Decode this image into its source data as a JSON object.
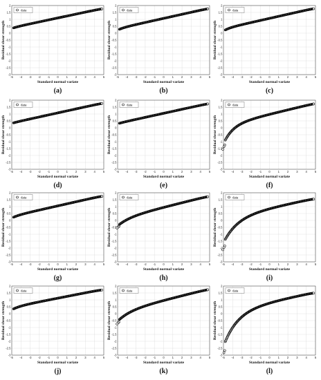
{
  "figure": {
    "xlabel": "Standard normal variate",
    "ylabel": "Residual shear strength",
    "legend_label": "data",
    "legend_position": "top-left",
    "marker": "open-circle",
    "marker_color": "#000000",
    "grid": true
  },
  "chart_data": [
    {
      "caption": "(a)",
      "type": "scatter",
      "xlim": [
        -5,
        5
      ],
      "ylim": [
        -3,
        2
      ],
      "xticks": [
        "-5",
        "-4",
        "-3",
        "-2",
        "-1",
        "0",
        "1",
        "2",
        "3",
        "4",
        "5"
      ],
      "yticks": [
        "-3",
        "-2.5",
        "-2",
        "-1.5",
        "-1",
        "-0.5",
        "0",
        "0.5",
        "1",
        "1.5",
        "2"
      ],
      "x_range": [
        -4.8,
        4.8
      ],
      "y_at_center": 1.1,
      "slope": 0.141,
      "lower_tail": {
        "depth": 0.04,
        "decay": 0.6
      },
      "upper_tail": {
        "depth": 0.02,
        "decay": 0.5
      }
    },
    {
      "caption": "(b)",
      "type": "scatter",
      "xlim": [
        -5,
        5
      ],
      "ylim": [
        -3,
        2
      ],
      "xticks": [
        "-5",
        "-4",
        "-3",
        "-2",
        "-1",
        "0",
        "1",
        "2",
        "3",
        "4",
        "5"
      ],
      "yticks": [
        "-3",
        "-2.5",
        "-2",
        "-1.5",
        "-1",
        "-0.5",
        "0",
        "0.5",
        "1",
        "1.5",
        "2"
      ],
      "x_range": [
        -4.8,
        4.8
      ],
      "y_at_center": 1.07,
      "slope": 0.148,
      "lower_tail": {
        "depth": 0.08,
        "decay": 0.6
      },
      "upper_tail": {
        "depth": 0.02,
        "decay": 0.5
      }
    },
    {
      "caption": "(c)",
      "type": "scatter",
      "xlim": [
        -5,
        5
      ],
      "ylim": [
        -3,
        2
      ],
      "xticks": [
        "-5",
        "-4",
        "-3",
        "-2",
        "-1",
        "0",
        "1",
        "2",
        "3",
        "4",
        "5"
      ],
      "yticks": [
        "-3",
        "-2.5",
        "-2",
        "-1.5",
        "-1",
        "-0.5",
        "0",
        "0.5",
        "1",
        "1.5",
        "2"
      ],
      "x_range": [
        -4.8,
        4.8
      ],
      "y_at_center": 1.07,
      "slope": 0.15,
      "lower_tail": {
        "depth": 0.12,
        "decay": 0.6
      },
      "upper_tail": {
        "depth": 0.02,
        "decay": 0.5
      }
    },
    {
      "caption": "(d)",
      "type": "scatter",
      "xlim": [
        -5,
        5
      ],
      "ylim": [
        -3,
        2
      ],
      "xticks": [
        "-5",
        "-4",
        "-3",
        "-2",
        "-1",
        "0",
        "1",
        "2",
        "3",
        "4",
        "5"
      ],
      "yticks": [
        "-3",
        "-2.5",
        "-2",
        "-1.5",
        "-1",
        "-0.5",
        "0",
        "0.5",
        "1",
        "1.5",
        "2"
      ],
      "x_range": [
        -4.8,
        4.8
      ],
      "y_at_center": 1.08,
      "slope": 0.146,
      "lower_tail": {
        "depth": 0.02,
        "decay": 0.5
      },
      "upper_tail": {
        "depth": 0.02,
        "decay": 0.5
      }
    },
    {
      "caption": "(e)",
      "type": "scatter",
      "xlim": [
        -5,
        5
      ],
      "ylim": [
        -3,
        2
      ],
      "xticks": [
        "-5",
        "-4",
        "-3",
        "-2",
        "-1",
        "0",
        "1",
        "2",
        "3",
        "4",
        "5"
      ],
      "yticks": [
        "-3",
        "-2.5",
        "-2",
        "-1.5",
        "-1",
        "-0.5",
        "0",
        "0.5",
        "1",
        "1.5",
        "2"
      ],
      "x_range": [
        -4.8,
        4.8
      ],
      "y_at_center": 1.05,
      "slope": 0.146,
      "lower_tail": {
        "depth": 0.02,
        "decay": 0.5
      },
      "upper_tail": {
        "depth": 0.02,
        "decay": 0.5
      }
    },
    {
      "caption": "(f)",
      "type": "scatter",
      "xlim": [
        -5,
        5
      ],
      "ylim": [
        -3,
        2
      ],
      "xticks": [
        "-5",
        "-4",
        "-3",
        "-2",
        "-1",
        "0",
        "1",
        "2",
        "3",
        "4",
        "5"
      ],
      "yticks": [
        "-3",
        "-2.5",
        "-2",
        "-1.5",
        "-1",
        "-0.5",
        "0",
        "0.5",
        "1",
        "1.5",
        "2"
      ],
      "x_range": [
        -4.8,
        4.8
      ],
      "y_at_center": 0.98,
      "slope": 0.16,
      "lower_tail": {
        "depth": 1.1,
        "decay": 1.0
      },
      "upper_tail": {
        "depth": 0.02,
        "decay": 0.5
      }
    },
    {
      "caption": "(g)",
      "type": "scatter",
      "xlim": [
        -5,
        5
      ],
      "ylim": [
        -3,
        2
      ],
      "xticks": [
        "-5",
        "-4",
        "-3",
        "-2",
        "-1",
        "0",
        "1",
        "2",
        "3",
        "4",
        "5"
      ],
      "yticks": [
        "-3",
        "-2.5",
        "-2",
        "-1.5",
        "-1",
        "-0.5",
        "0",
        "0.5",
        "1",
        "1.5",
        "2"
      ],
      "x_range": [
        -4.8,
        4.8
      ],
      "y_at_center": 1.05,
      "slope": 0.15,
      "lower_tail": {
        "depth": 0.1,
        "decay": 0.7
      },
      "upper_tail": {
        "depth": 0.03,
        "decay": 0.5
      }
    },
    {
      "caption": "(h)",
      "type": "scatter",
      "xlim": [
        -5,
        5
      ],
      "ylim": [
        -3,
        2
      ],
      "xticks": [
        "-5",
        "-4",
        "-3",
        "-2",
        "-1",
        "0",
        "1",
        "2",
        "3",
        "4",
        "5"
      ],
      "yticks": [
        "-3",
        "-2.5",
        "-2",
        "-1.5",
        "-1",
        "-0.5",
        "0",
        "0.5",
        "1",
        "1.5",
        "2"
      ],
      "x_range": [
        -4.8,
        4.8
      ],
      "y_at_center": 0.95,
      "slope": 0.165,
      "lower_tail": {
        "depth": 0.45,
        "decay": 1.3
      },
      "upper_tail": {
        "depth": 0.03,
        "decay": 0.5
      }
    },
    {
      "caption": "(i)",
      "type": "scatter",
      "xlim": [
        -5,
        5
      ],
      "ylim": [
        -3,
        2
      ],
      "xticks": [
        "-5",
        "-4",
        "-3",
        "-2",
        "-1",
        "0",
        "1",
        "2",
        "3",
        "4",
        "5"
      ],
      "yticks": [
        "-3",
        "-2.5",
        "-2",
        "-1.5",
        "-1",
        "-0.5",
        "0",
        "0.5",
        "1",
        "1.5",
        "2"
      ],
      "x_range": [
        -4.8,
        4.8
      ],
      "y_at_center": 0.9,
      "slope": 0.14,
      "lower_tail": {
        "depth": 1.6,
        "decay": 1.5
      },
      "upper_tail": {
        "depth": 0.03,
        "decay": 0.5
      }
    },
    {
      "caption": "(j)",
      "type": "scatter",
      "xlim": [
        -5,
        5
      ],
      "ylim": [
        -3,
        2
      ],
      "xticks": [
        "-5",
        "-4",
        "-3",
        "-2",
        "-1",
        "0",
        "1",
        "2",
        "3",
        "4",
        "5"
      ],
      "yticks": [
        "-3",
        "-2.5",
        "-2",
        "-1.5",
        "-1",
        "-0.5",
        "0",
        "0.5",
        "1",
        "1.5",
        "2"
      ],
      "x_range": [
        -4.8,
        4.8
      ],
      "y_at_center": 1.12,
      "slope": 0.13,
      "lower_tail": {
        "depth": 0.15,
        "decay": 0.8
      },
      "upper_tail": {
        "depth": 0.03,
        "decay": 0.5
      }
    },
    {
      "caption": "(k)",
      "type": "scatter",
      "xlim": [
        -5,
        5
      ],
      "ylim": [
        -3,
        2
      ],
      "xticks": [
        "-5",
        "-4",
        "-3",
        "-2",
        "-1",
        "0",
        "1",
        "2",
        "3",
        "4",
        "5"
      ],
      "yticks": [
        "-3",
        "-2.5",
        "-2",
        "-1.5",
        "-1",
        "-0.5",
        "0",
        "0.5",
        "1",
        "1.5",
        "2"
      ],
      "x_range": [
        -4.8,
        4.8
      ],
      "y_at_center": 0.97,
      "slope": 0.165,
      "lower_tail": {
        "depth": 0.6,
        "decay": 1.4
      },
      "upper_tail": {
        "depth": 0.03,
        "decay": 0.5
      }
    },
    {
      "caption": "(l)",
      "type": "scatter",
      "xlim": [
        -5,
        5
      ],
      "ylim": [
        -3,
        2
      ],
      "xticks": [
        "-5",
        "-4",
        "-3",
        "-2",
        "-1",
        "0",
        "1",
        "2",
        "3",
        "4",
        "5"
      ],
      "yticks": [
        "-3",
        "-2.5",
        "-2",
        "-1.5",
        "-1",
        "-0.5",
        "0",
        "0.5",
        "1",
        "1.5",
        "2"
      ],
      "x_range": [
        -4.8,
        4.8
      ],
      "y_at_center": 0.85,
      "slope": 0.14,
      "lower_tail": {
        "depth": 2.2,
        "decay": 1.5
      },
      "upper_tail": {
        "depth": 0.03,
        "decay": 0.5
      }
    }
  ]
}
